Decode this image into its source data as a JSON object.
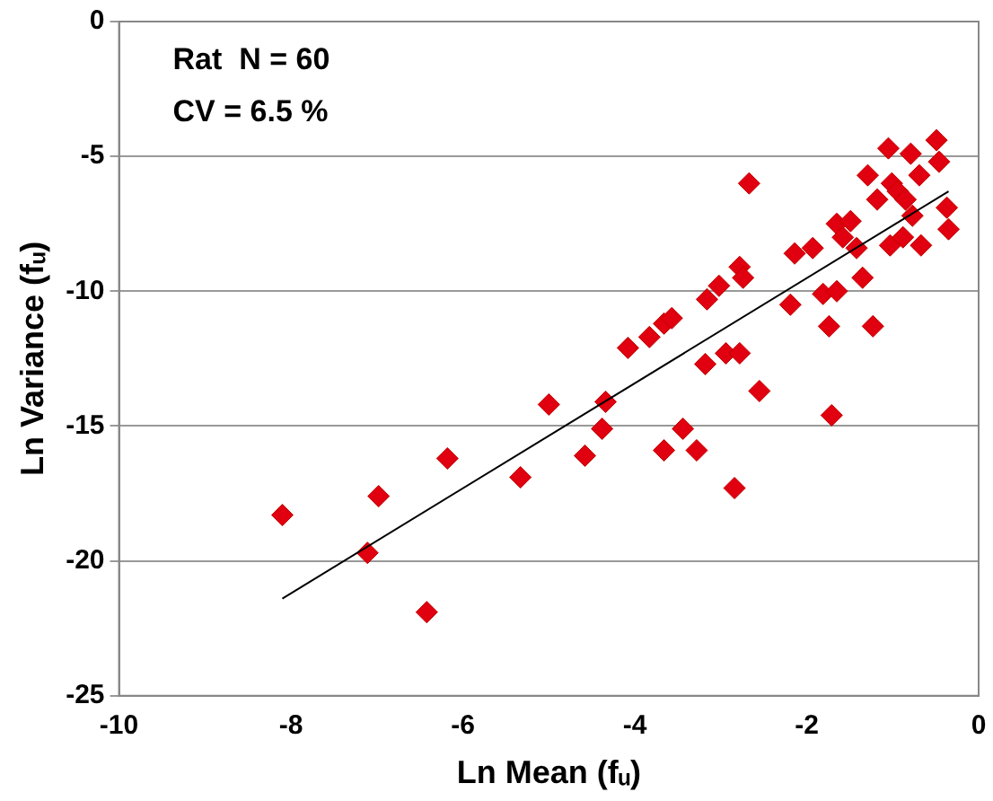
{
  "chart_data": {
    "type": "scatter",
    "xlabel": "Ln Mean (fᵤ)",
    "ylabel": "Ln Variance (fᵤ)",
    "annotations": [
      "Rat  N = 60",
      "CV = 6.5 %"
    ],
    "xlim": [
      -10,
      0
    ],
    "xticks": [
      -10,
      -8,
      -6,
      -4,
      -2,
      0
    ],
    "ylim": [
      -25,
      0
    ],
    "yticks": [
      -25,
      -20,
      -15,
      -10,
      -5,
      0
    ],
    "grid": "y",
    "legend": false,
    "marker": "diamond",
    "series": [
      {
        "color": "#e0000f",
        "x": [
          -8.1,
          -7.11,
          -6.98,
          -6.42,
          -6.18,
          -5.33,
          -5.0,
          -4.58,
          -4.38,
          -4.34,
          -4.08,
          -3.83,
          -3.66,
          -3.57,
          -3.66,
          -3.44,
          -3.28,
          -3.18,
          -3.16,
          -3.02,
          -2.94,
          -2.78,
          -2.84,
          -2.78,
          -2.74,
          -2.67,
          -2.55,
          -2.19,
          -2.14,
          -1.93,
          -1.81,
          -1.74,
          -1.71,
          -1.65,
          -1.65,
          -1.58,
          -1.49,
          -1.42,
          -1.35,
          -1.29,
          -1.23,
          -1.18,
          -1.05,
          -1.03,
          -1.01,
          -0.94,
          -0.88,
          -0.85,
          -0.79,
          -0.77,
          -0.69,
          -0.67,
          -0.49,
          -0.46,
          -0.37,
          -0.35
        ],
        "values": [
          -18.3,
          -19.7,
          -17.6,
          -21.9,
          -16.2,
          -16.9,
          -14.2,
          -16.1,
          -15.1,
          -14.1,
          -12.1,
          -11.7,
          -11.2,
          -11.0,
          -15.9,
          -15.1,
          -15.9,
          -12.7,
          -10.3,
          -9.8,
          -12.3,
          -12.3,
          -17.3,
          -9.1,
          -9.5,
          -6.0,
          -13.7,
          -10.5,
          -8.6,
          -8.4,
          -10.1,
          -11.3,
          -14.6,
          -10.0,
          -7.5,
          -8.0,
          -7.4,
          -8.4,
          -9.5,
          -5.7,
          -11.3,
          -6.6,
          -4.7,
          -8.3,
          -6.0,
          -6.3,
          -8.0,
          -6.6,
          -4.9,
          -7.2,
          -5.7,
          -8.3,
          -4.4,
          -5.2,
          -6.9,
          -7.7
        ]
      },
      {
        "type": "line",
        "color": "#000000",
        "marker": "none",
        "x": [
          -8.1,
          -0.35
        ],
        "values": [
          -21.4,
          -6.3
        ]
      }
    ]
  }
}
